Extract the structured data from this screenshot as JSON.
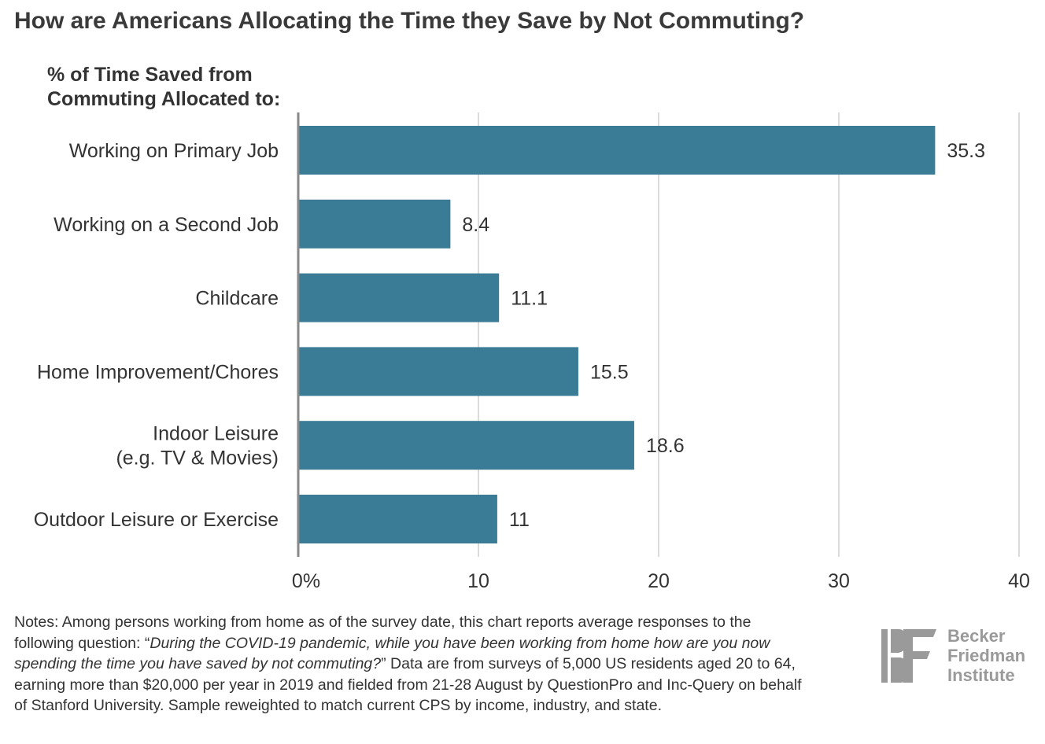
{
  "chart_data": {
    "type": "bar",
    "orientation": "horizontal",
    "title": "How are Americans Allocating the Time they Save by Not Commuting?",
    "ylabel_lines": [
      "% of Time Saved from",
      "Commuting Allocated to:"
    ],
    "categories": [
      [
        "Working on Primary Job"
      ],
      [
        "Working on a Second Job"
      ],
      [
        "Childcare"
      ],
      [
        "Home Improvement/Chores"
      ],
      [
        "Indoor Leisure",
        "(e.g. TV & Movies)"
      ],
      [
        "Outdoor Leisure or Exercise"
      ]
    ],
    "values": [
      35.3,
      8.4,
      11.1,
      15.5,
      18.6,
      11
    ],
    "value_labels": [
      "35.3",
      "8.4",
      "11.1",
      "15.5",
      "18.6",
      "11"
    ],
    "xlim": [
      0,
      40
    ],
    "xticks": [
      0,
      10,
      20,
      30,
      40
    ],
    "xtick_labels": [
      "0%",
      "10",
      "20",
      "30",
      "40"
    ],
    "grid": true,
    "bar_color": "#3a7b96"
  },
  "notes": {
    "lead": "Notes: Among persons working from home as of the survey date, this chart reports average responses to the following question: “",
    "question": "During the COVID-19 pandemic, while you have been working from home how are you now spending the time you have saved by not commuting?",
    "tail": "” Data are from surveys of 5,000 US residents aged 20 to 64, earning more than $20,000 per year in 2019 and fielded from 21-28 August by QuestionPro and Inc-Query on behalf of Stanford University. Sample reweighted to match current CPS by income, industry, and state."
  },
  "logo": {
    "lines": [
      "Becker",
      "Friedman",
      "Institute"
    ],
    "color": "#9a9a9a"
  }
}
